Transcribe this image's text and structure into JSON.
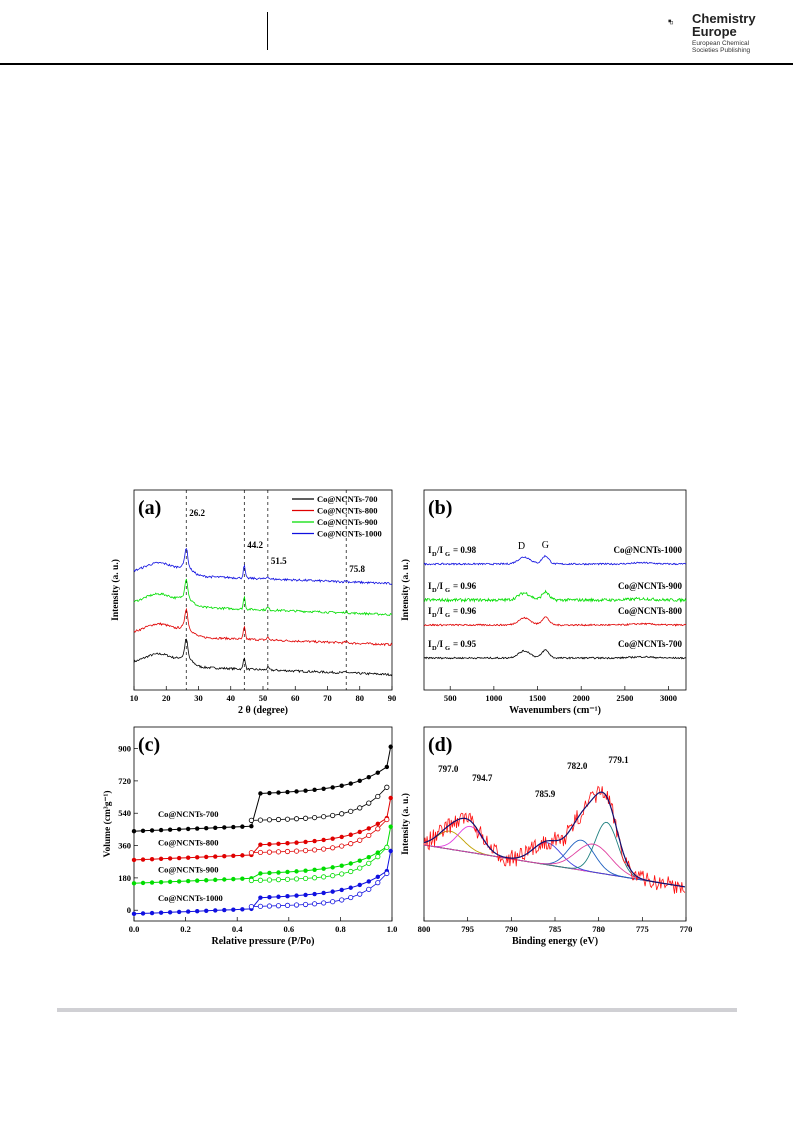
{
  "header": {
    "logo_line1": "Chemistry",
    "logo_line2": "Europe",
    "logo_line3": "European Chemical",
    "logo_line4": "Societies Publishing"
  },
  "chart_data": [
    {
      "panel": "(a)",
      "type": "line",
      "xlabel": "2 θ (degree)",
      "ylabel": "Intensity (a. u.)",
      "xlim": [
        10,
        90
      ],
      "xticks": [
        "10",
        "20",
        "30",
        "40",
        "50",
        "60",
        "70",
        "80",
        "90"
      ],
      "peak_labels": [
        {
          "x": 26.2,
          "label": "26.2"
        },
        {
          "x": 44.2,
          "label": "44.2"
        },
        {
          "x": 51.5,
          "label": "51.5"
        },
        {
          "x": 75.8,
          "label": "75.8"
        }
      ],
      "legend": [
        "Co@NCNTs-700",
        "Co@NCNTs-800",
        "Co@NCNTs-900",
        "Co@NCNTs-1000"
      ],
      "series": [
        {
          "name": "Co@NCNTs-700",
          "color": "#000000"
        },
        {
          "name": "Co@NCNTs-800",
          "color": "#e00000"
        },
        {
          "name": "Co@NCNTs-900",
          "color": "#00dd00"
        },
        {
          "name": "Co@NCNTs-1000",
          "color": "#1010e0"
        }
      ]
    },
    {
      "panel": "(b)",
      "type": "line",
      "xlabel": "Wavenumbers (cm⁻¹)",
      "ylabel": "Intensity (a. u.)",
      "xlim": [
        200,
        3200
      ],
      "xticks": [
        "500",
        "1000",
        "1500",
        "2000",
        "2500",
        "3000"
      ],
      "band_labels": [
        "D",
        "G"
      ],
      "series": [
        {
          "name": "Co@NCNTs-1000",
          "ratio": "= 0.98",
          "color": "#1010e0"
        },
        {
          "name": "Co@NCNTs-900",
          "ratio": "= 0.96",
          "color": "#00dd00"
        },
        {
          "name": "Co@NCNTs-800",
          "ratio": "= 0.96",
          "color": "#e00000"
        },
        {
          "name": "Co@NCNTs-700",
          "ratio": "= 0.95",
          "color": "#000000"
        }
      ]
    },
    {
      "panel": "(c)",
      "type": "line",
      "xlabel": "Relative pressure (P/Po)",
      "ylabel": "Volume (cm³g⁻¹)",
      "xlim": [
        0.0,
        1.0
      ],
      "ylim": [
        -60,
        1020
      ],
      "xticks": [
        "0.0",
        "0.2",
        "0.4",
        "0.6",
        "0.8",
        "1.0"
      ],
      "yticks": [
        "0",
        "180",
        "360",
        "540",
        "720",
        "900"
      ],
      "series": [
        {
          "name": "Co@NCNTs-700",
          "color": "#000000",
          "base": 440,
          "step": 180,
          "open_base": 500
        },
        {
          "name": "Co@NCNTs-800",
          "color": "#e00000",
          "base": 280,
          "step": 55,
          "open_base": 320
        },
        {
          "name": "Co@NCNTs-900",
          "color": "#00dd00",
          "base": 150,
          "step": 25,
          "open_base": 165
        },
        {
          "name": "Co@NCNTs-1000",
          "color": "#1010e0",
          "base": -20,
          "step": 60,
          "open_base": 20
        }
      ]
    },
    {
      "panel": "(d)",
      "type": "line",
      "xlabel": "Binding energy (eV)",
      "ylabel": "Intensity (a. u.)",
      "xlim": [
        800,
        770
      ],
      "xticks": [
        "800",
        "795",
        "790",
        "785",
        "780",
        "775",
        "770"
      ],
      "peak_labels": [
        {
          "x": 797.0,
          "label": "797.0"
        },
        {
          "x": 794.7,
          "label": "794.7"
        },
        {
          "x": 785.9,
          "label": "785.9"
        },
        {
          "x": 782.0,
          "label": "782.0"
        },
        {
          "x": 779.1,
          "label": "779.1"
        }
      ]
    }
  ]
}
